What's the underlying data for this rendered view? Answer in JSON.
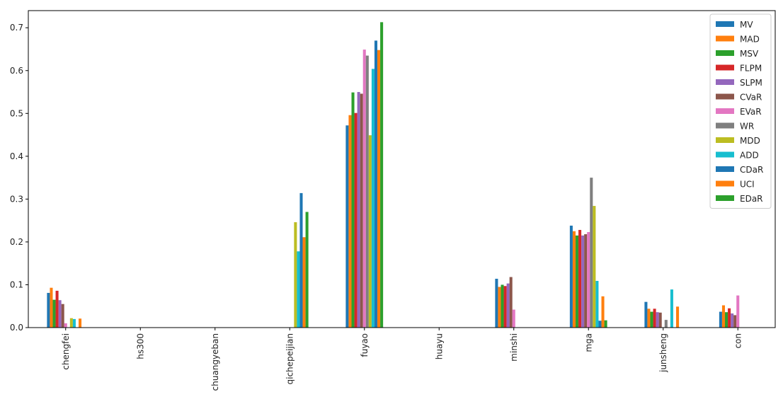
{
  "chart_data": {
    "type": "bar",
    "categories": [
      "chengfei",
      "hs300",
      "chuangyeban",
      "qichepeijian",
      "fuyao",
      "huayu",
      "minshi",
      "mga",
      "junsheng",
      "con"
    ],
    "ylim": [
      0,
      0.74
    ],
    "yticks": [
      "0.0",
      "0.1",
      "0.2",
      "0.3",
      "0.4",
      "0.5",
      "0.6",
      "0.7"
    ],
    "grid": false,
    "legend_position": "top-right",
    "series": [
      {
        "name": "MV",
        "color": "#1f77b4",
        "values": [
          0.081,
          0,
          0,
          0,
          0.472,
          0,
          0.114,
          0.238,
          0.06,
          0.037
        ]
      },
      {
        "name": "MAD",
        "color": "#ff7f0e",
        "values": [
          0.093,
          0,
          0,
          0,
          0.496,
          0,
          0.095,
          0.225,
          0.044,
          0.052
        ]
      },
      {
        "name": "MSV",
        "color": "#2ca02c",
        "values": [
          0.065,
          0,
          0,
          0,
          0.549,
          0,
          0.1,
          0.215,
          0.037,
          0.036
        ]
      },
      {
        "name": "FLPM",
        "color": "#d62728",
        "values": [
          0.086,
          0,
          0,
          0,
          0.501,
          0,
          0.097,
          0.228,
          0.044,
          0.045
        ]
      },
      {
        "name": "SLPM",
        "color": "#9467bd",
        "values": [
          0.064,
          0,
          0,
          0,
          0.55,
          0,
          0.103,
          0.215,
          0.036,
          0.033
        ]
      },
      {
        "name": "CVaR",
        "color": "#8c564b",
        "values": [
          0.055,
          0,
          0,
          0,
          0.546,
          0,
          0.118,
          0.218,
          0.035,
          0.029
        ]
      },
      {
        "name": "EVaR",
        "color": "#e377c2",
        "values": [
          0.01,
          0,
          0,
          0,
          0.649,
          0,
          0.042,
          0.223,
          0,
          0.075
        ]
      },
      {
        "name": "WR",
        "color": "#7f7f7f",
        "values": [
          0,
          0,
          0,
          0,
          0.635,
          0,
          0,
          0.35,
          0.018,
          0
        ]
      },
      {
        "name": "MDD",
        "color": "#bcbd22",
        "values": [
          0.022,
          0,
          0,
          0.246,
          0.449,
          0,
          0,
          0.284,
          0,
          0
        ]
      },
      {
        "name": "ADD",
        "color": "#17becf",
        "values": [
          0.02,
          0,
          0,
          0.178,
          0.604,
          0,
          0,
          0.109,
          0.089,
          0
        ]
      },
      {
        "name": "CDaR",
        "color": "#1f77b4",
        "values": [
          0,
          0,
          0,
          0.314,
          0.67,
          0,
          0,
          0.016,
          0,
          0
        ]
      },
      {
        "name": "UCI",
        "color": "#ff7f0e",
        "values": [
          0.021,
          0,
          0,
          0.211,
          0.648,
          0,
          0,
          0.073,
          0.049,
          0
        ]
      },
      {
        "name": "EDaR",
        "color": "#2ca02c",
        "values": [
          0,
          0,
          0,
          0.27,
          0.713,
          0,
          0,
          0.017,
          0,
          0
        ]
      }
    ]
  }
}
